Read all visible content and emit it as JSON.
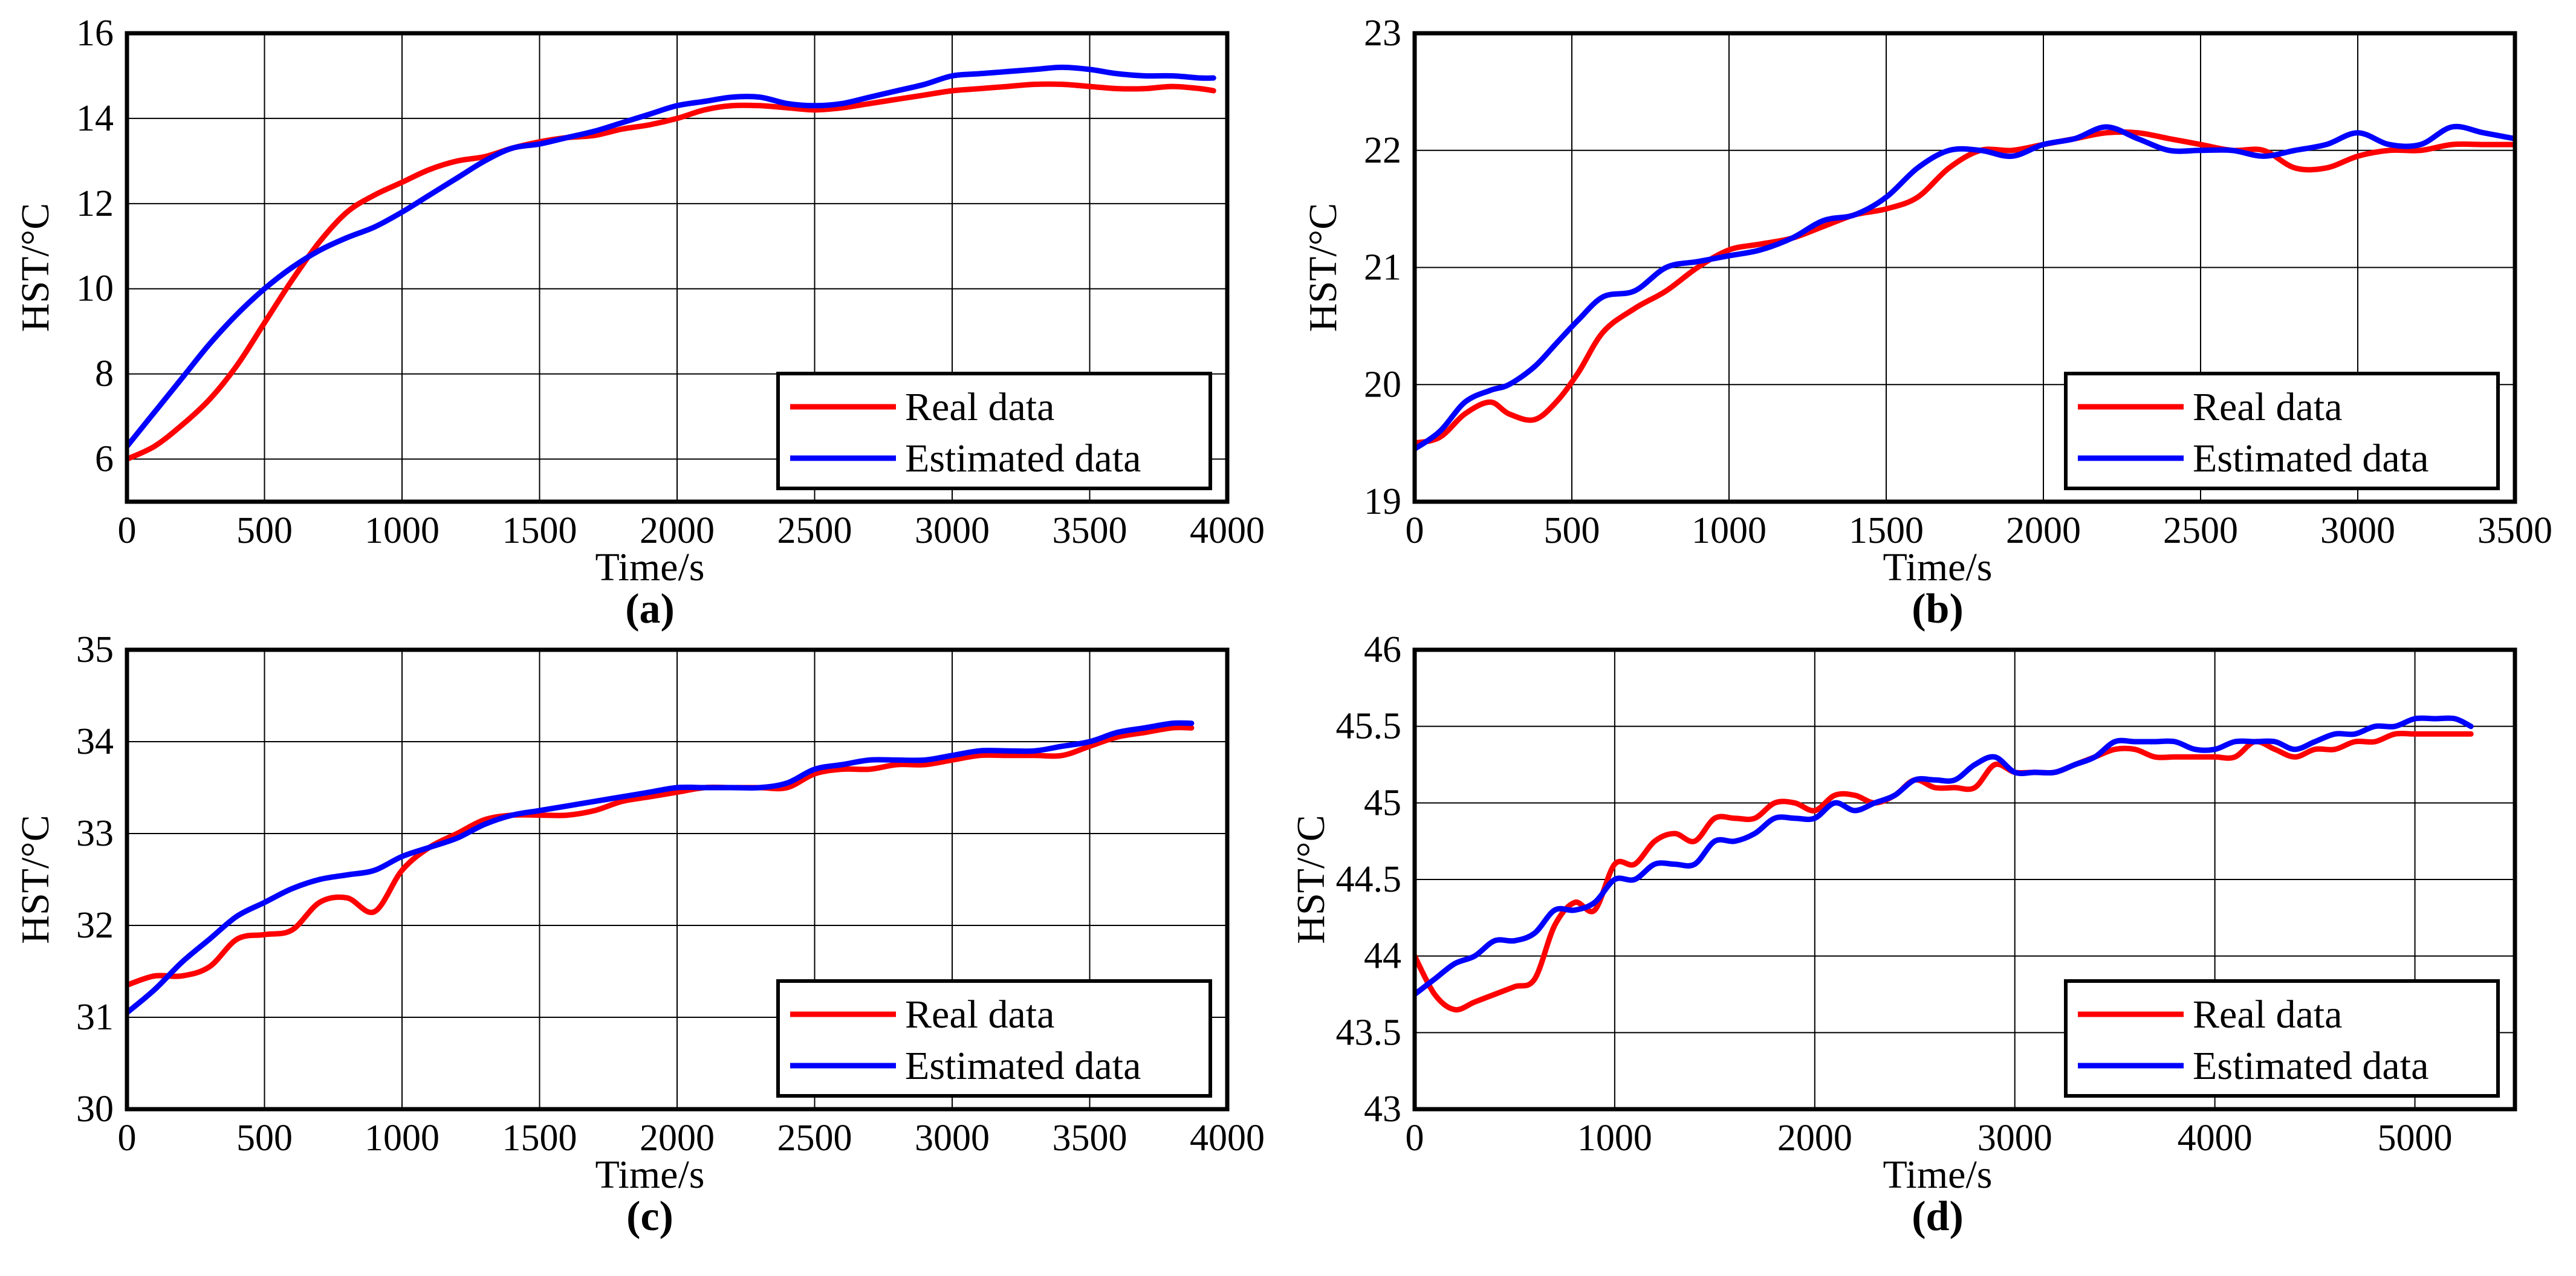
{
  "chart_data": [
    {
      "type": "line",
      "panel_label": "(a)",
      "xlabel": "Time/s",
      "ylabel": "HST/°C",
      "xlim": [
        0,
        4000
      ],
      "ylim": [
        5,
        16
      ],
      "xticks": [
        0,
        500,
        1000,
        1500,
        2000,
        2500,
        3000,
        3500,
        4000
      ],
      "yticks": [
        6,
        8,
        10,
        12,
        14,
        16
      ],
      "grid": true,
      "legend_position": "bottom-right",
      "series": [
        {
          "name": "Real data",
          "color": "#ff0000",
          "x": [
            0,
            100,
            200,
            300,
            400,
            500,
            600,
            700,
            800,
            900,
            1000,
            1100,
            1200,
            1300,
            1400,
            1500,
            1600,
            1700,
            1800,
            1900,
            2000,
            2100,
            2200,
            2300,
            2400,
            2500,
            2600,
            2700,
            2800,
            2900,
            3000,
            3100,
            3200,
            3300,
            3400,
            3500,
            3600,
            3700,
            3800,
            3900,
            3950
          ],
          "y": [
            6.0,
            6.3,
            6.8,
            7.4,
            8.2,
            9.2,
            10.2,
            11.1,
            11.8,
            12.2,
            12.5,
            12.8,
            13.0,
            13.1,
            13.3,
            13.45,
            13.55,
            13.6,
            13.75,
            13.85,
            14.0,
            14.2,
            14.3,
            14.3,
            14.25,
            14.2,
            14.25,
            14.35,
            14.45,
            14.55,
            14.65,
            14.7,
            14.75,
            14.8,
            14.8,
            14.75,
            14.7,
            14.7,
            14.75,
            14.7,
            14.65
          ]
        },
        {
          "name": "Estimated data",
          "color": "#0000ff",
          "x": [
            0,
            100,
            200,
            300,
            400,
            500,
            600,
            700,
            800,
            900,
            1000,
            1100,
            1200,
            1300,
            1400,
            1500,
            1600,
            1700,
            1800,
            1900,
            2000,
            2100,
            2200,
            2300,
            2400,
            2500,
            2600,
            2700,
            2800,
            2900,
            3000,
            3100,
            3200,
            3300,
            3400,
            3500,
            3600,
            3700,
            3800,
            3900,
            3950
          ],
          "y": [
            6.3,
            7.1,
            7.9,
            8.7,
            9.4,
            10.0,
            10.5,
            10.9,
            11.2,
            11.45,
            11.8,
            12.2,
            12.6,
            13.0,
            13.3,
            13.4,
            13.55,
            13.7,
            13.9,
            14.1,
            14.3,
            14.4,
            14.5,
            14.5,
            14.35,
            14.3,
            14.35,
            14.5,
            14.65,
            14.8,
            15.0,
            15.05,
            15.1,
            15.15,
            15.2,
            15.15,
            15.05,
            15.0,
            15.0,
            14.95,
            14.95
          ]
        }
      ]
    },
    {
      "type": "line",
      "panel_label": "(b)",
      "xlabel": "Time/s",
      "ylabel": "HST/°C",
      "xlim": [
        0,
        3500
      ],
      "ylim": [
        19,
        23
      ],
      "xticks": [
        0,
        500,
        1000,
        1500,
        2000,
        2500,
        3000,
        3500
      ],
      "yticks": [
        19,
        20,
        21,
        22,
        23
      ],
      "grid": true,
      "legend_position": "bottom-right",
      "series": [
        {
          "name": "Real data",
          "color": "#ff0000",
          "x": [
            0,
            80,
            160,
            240,
            300,
            380,
            450,
            520,
            600,
            700,
            800,
            900,
            1000,
            1100,
            1200,
            1300,
            1400,
            1500,
            1600,
            1700,
            1800,
            1900,
            2000,
            2100,
            2200,
            2300,
            2400,
            2500,
            2600,
            2700,
            2800,
            2900,
            3000,
            3100,
            3200,
            3300,
            3400,
            3500
          ],
          "y": [
            19.5,
            19.55,
            19.75,
            19.85,
            19.75,
            19.7,
            19.85,
            20.1,
            20.45,
            20.65,
            20.8,
            21.0,
            21.15,
            21.2,
            21.25,
            21.35,
            21.45,
            21.5,
            21.6,
            21.85,
            22.0,
            22.0,
            22.05,
            22.1,
            22.15,
            22.15,
            22.1,
            22.05,
            22.0,
            22.0,
            21.85,
            21.85,
            21.95,
            22.0,
            22.0,
            22.05,
            22.05,
            22.05
          ]
        },
        {
          "name": "Estimated data",
          "color": "#0000ff",
          "x": [
            0,
            80,
            160,
            240,
            300,
            380,
            450,
            520,
            600,
            700,
            800,
            900,
            1000,
            1100,
            1200,
            1300,
            1400,
            1500,
            1600,
            1700,
            1800,
            1900,
            2000,
            2100,
            2200,
            2300,
            2400,
            2500,
            2600,
            2700,
            2800,
            2900,
            3000,
            3100,
            3200,
            3300,
            3400,
            3500
          ],
          "y": [
            19.45,
            19.6,
            19.85,
            19.95,
            20.0,
            20.15,
            20.35,
            20.55,
            20.75,
            20.8,
            21.0,
            21.05,
            21.1,
            21.15,
            21.25,
            21.4,
            21.45,
            21.6,
            21.85,
            22.0,
            22.0,
            21.95,
            22.05,
            22.1,
            22.2,
            22.1,
            22.0,
            22.0,
            22.0,
            21.95,
            22.0,
            22.05,
            22.15,
            22.05,
            22.05,
            22.2,
            22.15,
            22.1
          ]
        }
      ]
    },
    {
      "type": "line",
      "panel_label": "(c)",
      "xlabel": "Time/s",
      "ylabel": "HST/°C",
      "xlim": [
        0,
        4000
      ],
      "ylim": [
        30,
        35
      ],
      "xticks": [
        0,
        500,
        1000,
        1500,
        2000,
        2500,
        3000,
        3500,
        4000
      ],
      "yticks": [
        30,
        31,
        32,
        33,
        34,
        35
      ],
      "grid": true,
      "legend_position": "bottom-right",
      "series": [
        {
          "name": "Real data",
          "color": "#ff0000",
          "x": [
            0,
            100,
            200,
            300,
            400,
            500,
            600,
            700,
            800,
            900,
            1000,
            1100,
            1200,
            1300,
            1400,
            1500,
            1600,
            1700,
            1800,
            1900,
            2000,
            2100,
            2200,
            2300,
            2400,
            2500,
            2600,
            2700,
            2800,
            2900,
            3000,
            3100,
            3200,
            3300,
            3400,
            3500,
            3600,
            3700,
            3800,
            3870
          ],
          "y": [
            31.35,
            31.45,
            31.45,
            31.55,
            31.85,
            31.9,
            31.95,
            32.25,
            32.3,
            32.15,
            32.6,
            32.85,
            33.0,
            33.15,
            33.2,
            33.2,
            33.2,
            33.25,
            33.35,
            33.4,
            33.45,
            33.5,
            33.5,
            33.5,
            33.5,
            33.65,
            33.7,
            33.7,
            33.75,
            33.75,
            33.8,
            33.85,
            33.85,
            33.85,
            33.85,
            33.95,
            34.05,
            34.1,
            34.15,
            34.15
          ]
        },
        {
          "name": "Estimated data",
          "color": "#0000ff",
          "x": [
            0,
            100,
            200,
            300,
            400,
            500,
            600,
            700,
            800,
            900,
            1000,
            1100,
            1200,
            1300,
            1400,
            1500,
            1600,
            1700,
            1800,
            1900,
            2000,
            2100,
            2200,
            2300,
            2400,
            2500,
            2600,
            2700,
            2800,
            2900,
            3000,
            3100,
            3200,
            3300,
            3400,
            3500,
            3600,
            3700,
            3800,
            3870
          ],
          "y": [
            31.05,
            31.3,
            31.6,
            31.85,
            32.1,
            32.25,
            32.4,
            32.5,
            32.55,
            32.6,
            32.75,
            32.85,
            32.95,
            33.1,
            33.2,
            33.25,
            33.3,
            33.35,
            33.4,
            33.45,
            33.5,
            33.5,
            33.5,
            33.5,
            33.55,
            33.7,
            33.75,
            33.8,
            33.8,
            33.8,
            33.85,
            33.9,
            33.9,
            33.9,
            33.95,
            34.0,
            34.1,
            34.15,
            34.2,
            34.2
          ]
        }
      ]
    },
    {
      "type": "line",
      "panel_label": "(d)",
      "xlabel": "Time/s",
      "ylabel": "HST/°C",
      "xlim": [
        0,
        5500
      ],
      "ylim": [
        43,
        46
      ],
      "xticks": [
        0,
        1000,
        2000,
        3000,
        4000,
        5000
      ],
      "ytick_labels": [
        "43",
        "43.5",
        "44",
        "44.5",
        "45",
        "45.5",
        "46"
      ],
      "yticks": [
        43,
        43.5,
        44,
        44.5,
        45,
        45.5,
        46
      ],
      "grid": true,
      "legend_position": "bottom-right",
      "series": [
        {
          "name": "Real data",
          "color": "#ff0000",
          "x": [
            0,
            100,
            200,
            300,
            400,
            500,
            600,
            700,
            800,
            900,
            1000,
            1100,
            1200,
            1300,
            1400,
            1500,
            1600,
            1700,
            1800,
            1900,
            2000,
            2100,
            2200,
            2300,
            2400,
            2500,
            2600,
            2700,
            2800,
            2900,
            3000,
            3100,
            3200,
            3300,
            3400,
            3500,
            3600,
            3700,
            3800,
            3900,
            4000,
            4100,
            4200,
            4300,
            4400,
            4500,
            4600,
            4700,
            4800,
            4900,
            5000,
            5100,
            5200,
            5280
          ],
          "y": [
            44.0,
            43.75,
            43.65,
            43.7,
            43.75,
            43.8,
            43.85,
            44.2,
            44.35,
            44.3,
            44.6,
            44.6,
            44.75,
            44.8,
            44.75,
            44.9,
            44.9,
            44.9,
            45.0,
            45.0,
            44.95,
            45.05,
            45.05,
            45.0,
            45.05,
            45.15,
            45.1,
            45.1,
            45.1,
            45.25,
            45.2,
            45.2,
            45.2,
            45.25,
            45.3,
            45.35,
            45.35,
            45.3,
            45.3,
            45.3,
            45.3,
            45.3,
            45.4,
            45.35,
            45.3,
            45.35,
            45.35,
            45.4,
            45.4,
            45.45,
            45.45,
            45.45,
            45.45,
            45.45
          ]
        },
        {
          "name": "Estimated data",
          "color": "#0000ff",
          "x": [
            0,
            100,
            200,
            300,
            400,
            500,
            600,
            700,
            800,
            900,
            1000,
            1100,
            1200,
            1300,
            1400,
            1500,
            1600,
            1700,
            1800,
            1900,
            2000,
            2100,
            2200,
            2300,
            2400,
            2500,
            2600,
            2700,
            2800,
            2900,
            3000,
            3100,
            3200,
            3300,
            3400,
            3500,
            3600,
            3700,
            3800,
            3900,
            4000,
            4100,
            4200,
            4300,
            4400,
            4500,
            4600,
            4700,
            4800,
            4900,
            5000,
            5100,
            5200,
            5280
          ],
          "y": [
            43.75,
            43.85,
            43.95,
            44.0,
            44.1,
            44.1,
            44.15,
            44.3,
            44.3,
            44.35,
            44.5,
            44.5,
            44.6,
            44.6,
            44.6,
            44.75,
            44.75,
            44.8,
            44.9,
            44.9,
            44.9,
            45.0,
            44.95,
            45.0,
            45.05,
            45.15,
            45.15,
            45.15,
            45.25,
            45.3,
            45.2,
            45.2,
            45.2,
            45.25,
            45.3,
            45.4,
            45.4,
            45.4,
            45.4,
            45.35,
            45.35,
            45.4,
            45.4,
            45.4,
            45.35,
            45.4,
            45.45,
            45.45,
            45.5,
            45.5,
            45.55,
            45.55,
            45.55,
            45.5
          ]
        }
      ]
    }
  ]
}
